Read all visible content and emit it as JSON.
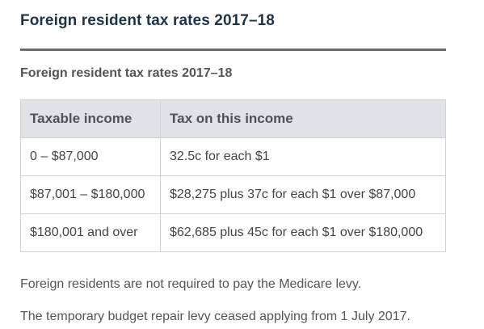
{
  "page": {
    "title": "Foreign resident tax rates 2017–18"
  },
  "table": {
    "caption": "Foreign resident tax rates 2017–18",
    "headers": [
      "Taxable income",
      "Tax on this income"
    ],
    "rows": [
      [
        "0 – $87,000",
        "32.5c for each $1"
      ],
      [
        "$87,001 – $180,000",
        "$28,275 plus 37c for each $1 over $87,000"
      ],
      [
        "$180,001 and over",
        "$62,685 plus 45c for each $1 over $180,000"
      ]
    ]
  },
  "notes": [
    "Foreign residents are not required to pay the Medicare levy.",
    "The temporary budget repair levy ceased applying from 1 July 2017."
  ],
  "colors": {
    "title": "#1f3346",
    "header_bg": "#dfe3e6",
    "border": "#cfd3d6",
    "rule": "#6b6b6b"
  }
}
